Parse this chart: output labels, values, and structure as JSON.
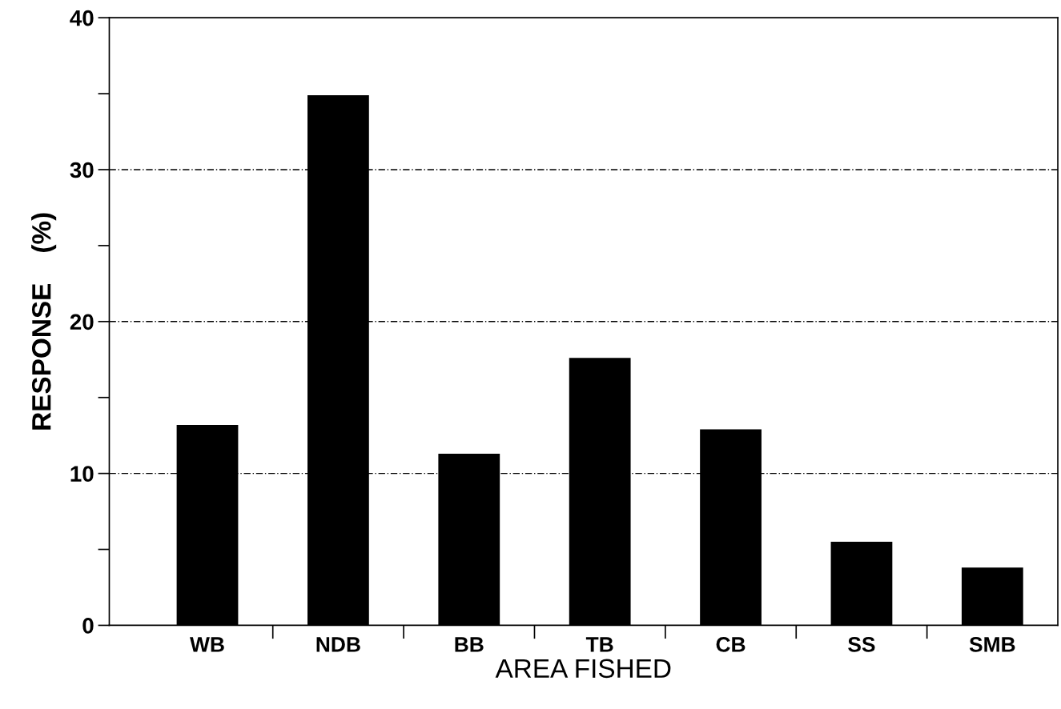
{
  "chart_data": {
    "type": "bar",
    "xlabel": "AREA FISHED",
    "ylabel": "RESPONSE    (%)",
    "categories": [
      "WB",
      "NDB",
      "BB",
      "TB",
      "CB",
      "SS",
      "SMB"
    ],
    "values": [
      13.2,
      34.9,
      11.3,
      17.6,
      12.9,
      5.5,
      3.8
    ],
    "color": "#000000",
    "ylim": [
      0,
      40
    ],
    "yticks": [
      0,
      {
        "value": 5,
        "label": null
      },
      10,
      {
        "value": 15,
        "label": null
      },
      20,
      {
        "value": 25,
        "label": null
      },
      30,
      {
        "value": 35,
        "label": null
      },
      40
    ],
    "grid": "y"
  }
}
